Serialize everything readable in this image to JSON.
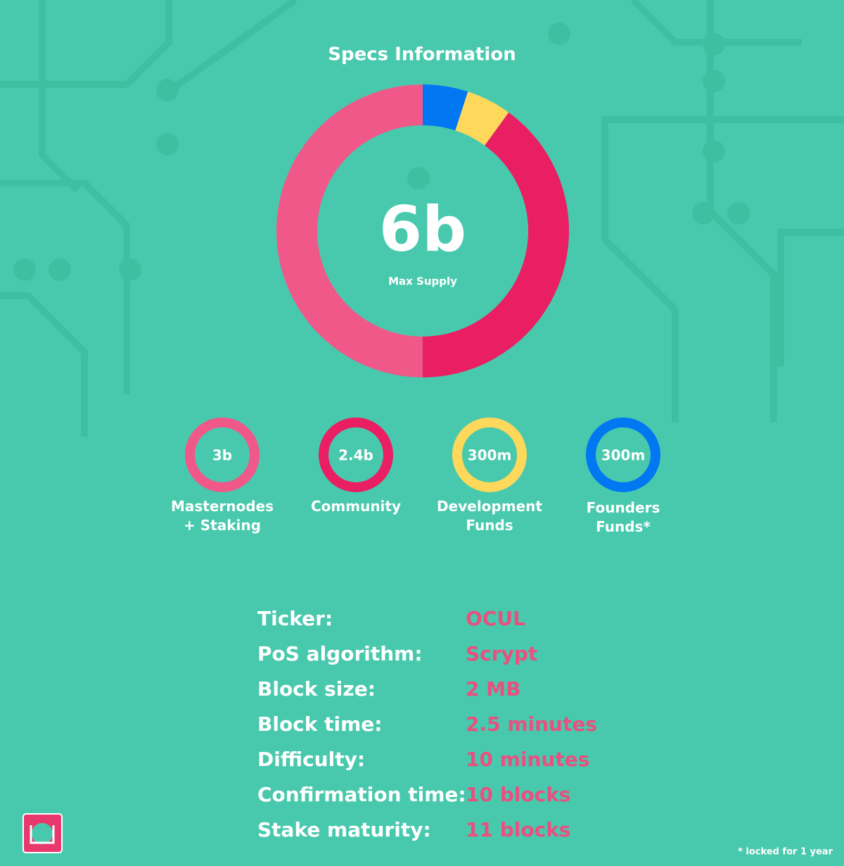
{
  "chart_data": {
    "type": "donut",
    "title": "Specs Information",
    "center_value": "6b",
    "center_label": "Max Supply",
    "categories": [
      "Masternodes + Staking",
      "Community",
      "Development Funds",
      "Founders Funds*"
    ],
    "values": [
      3000000000,
      2400000000,
      300000000,
      300000000
    ],
    "value_labels": [
      "3b",
      "2.4b",
      "300m",
      "300m"
    ],
    "colors": [
      "#f0588a",
      "#e91e63",
      "#fdd85a",
      "#0277f2"
    ]
  },
  "specs": {
    "rows": [
      [
        "Ticker:",
        "OCUL"
      ],
      [
        "PoS algorithm:",
        "Scrypt"
      ],
      [
        "Block size:",
        "2 MB"
      ],
      [
        "Block time:",
        "2.5 minutes"
      ],
      [
        "Difficulty:",
        "10 minutes"
      ],
      [
        "Confirmation time:",
        "10 blocks"
      ],
      [
        "Stake maturity:",
        "11 blocks"
      ]
    ]
  },
  "footnote": "* locked for 1 year"
}
